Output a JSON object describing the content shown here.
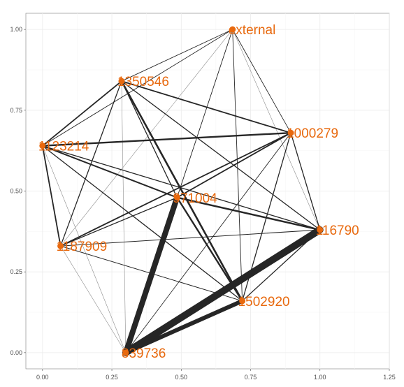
{
  "chart_data": {
    "type": "network",
    "xlim": [
      -0.06,
      1.25
    ],
    "ylim": [
      -0.05,
      1.05
    ],
    "x_ticks": [
      "0.00",
      "0.25",
      "0.50",
      "0.75",
      "1.00",
      "1.25"
    ],
    "y_ticks": [
      "0.00",
      "0.25",
      "0.50",
      "0.75",
      "1.00"
    ],
    "grid": true,
    "colors": {
      "node": "#e8690e",
      "label": "#e8690e",
      "edge": "#262626",
      "grid": "#ebebeb",
      "axis": "#555555"
    },
    "nodes": [
      {
        "id": "external",
        "x": 0.685,
        "y": 1.0
      },
      {
        "id": "1350546",
        "x": 0.285,
        "y": 0.84
      },
      {
        "id": "1000279",
        "x": 0.895,
        "y": 0.68
      },
      {
        "id": "1123214",
        "x": 0.0,
        "y": 0.64
      },
      {
        "id": "971004",
        "x": 0.485,
        "y": 0.48
      },
      {
        "id": "116790",
        "x": 1.0,
        "y": 0.38
      },
      {
        "id": "1187909",
        "x": 0.065,
        "y": 0.33
      },
      {
        "id": "1502920",
        "x": 0.72,
        "y": 0.16
      },
      {
        "id": "839736",
        "x": 0.3,
        "y": 0.0
      }
    ],
    "edges": [
      {
        "source": "external",
        "target": "1350546",
        "weight": 0.9
      },
      {
        "source": "external",
        "target": "1000279",
        "weight": 0.9
      },
      {
        "source": "external",
        "target": "1123214",
        "weight": 0.9
      },
      {
        "source": "external",
        "target": "971004",
        "weight": 0.9
      },
      {
        "source": "external",
        "target": "116790",
        "weight": 0.6
      },
      {
        "source": "external",
        "target": "1187909",
        "weight": 0.6
      },
      {
        "source": "external",
        "target": "1502920",
        "weight": 0.9
      },
      {
        "source": "external",
        "target": "839736",
        "weight": 0.6
      },
      {
        "source": "1350546",
        "target": "1000279",
        "weight": 1.8
      },
      {
        "source": "1350546",
        "target": "1123214",
        "weight": 1.8
      },
      {
        "source": "1350546",
        "target": "971004",
        "weight": 1.3
      },
      {
        "source": "1350546",
        "target": "116790",
        "weight": 1.3
      },
      {
        "source": "1350546",
        "target": "1187909",
        "weight": 1.3
      },
      {
        "source": "1350546",
        "target": "1502920",
        "weight": 2.6
      },
      {
        "source": "1350546",
        "target": "839736",
        "weight": 0.6
      },
      {
        "source": "1123214",
        "target": "1000279",
        "weight": 2.4
      },
      {
        "source": "1123214",
        "target": "971004",
        "weight": 2.0
      },
      {
        "source": "1123214",
        "target": "116790",
        "weight": 1.3
      },
      {
        "source": "1123214",
        "target": "1187909",
        "weight": 1.8
      },
      {
        "source": "1123214",
        "target": "1502920",
        "weight": 1.3
      },
      {
        "source": "1123214",
        "target": "839736",
        "weight": 0.6
      },
      {
        "source": "1000279",
        "target": "971004",
        "weight": 1.8
      },
      {
        "source": "1000279",
        "target": "116790",
        "weight": 1.3
      },
      {
        "source": "1000279",
        "target": "1187909",
        "weight": 1.8
      },
      {
        "source": "1000279",
        "target": "1502920",
        "weight": 1.3
      },
      {
        "source": "1000279",
        "target": "839736",
        "weight": 0.9
      },
      {
        "source": "971004",
        "target": "116790",
        "weight": 2.4
      },
      {
        "source": "971004",
        "target": "1187909",
        "weight": 1.3
      },
      {
        "source": "971004",
        "target": "1502920",
        "weight": 2.4
      },
      {
        "source": "971004",
        "target": "839736",
        "weight": 8.0
      },
      {
        "source": "116790",
        "target": "1187909",
        "weight": 1.0
      },
      {
        "source": "116790",
        "target": "1502920",
        "weight": 1.3
      },
      {
        "source": "116790",
        "target": "839736",
        "weight": 10.0
      },
      {
        "source": "1187909",
        "target": "1502920",
        "weight": 1.0
      },
      {
        "source": "1187909",
        "target": "839736",
        "weight": 0.6
      },
      {
        "source": "1502920",
        "target": "839736",
        "weight": 6.0
      }
    ]
  }
}
